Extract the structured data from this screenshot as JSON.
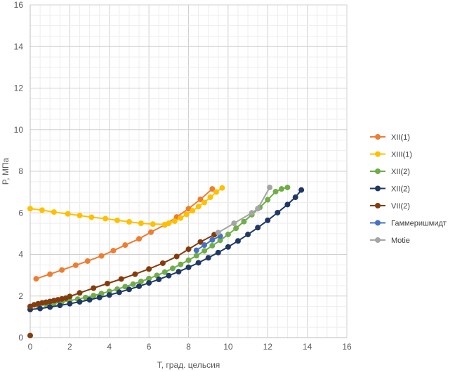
{
  "chart_data": {
    "type": "scatter",
    "title": "",
    "xlabel": "T, град. цельсия",
    "ylabel": "P, МПа",
    "xlim": [
      0,
      16
    ],
    "ylim": [
      0,
      16
    ],
    "xticks": [
      0,
      2,
      4,
      6,
      8,
      10,
      12,
      14,
      16
    ],
    "yticks": [
      0,
      2,
      4,
      6,
      8,
      10,
      12,
      14,
      16
    ],
    "grid": true,
    "legend_position": "right",
    "series": [
      {
        "name": "XII(1)",
        "color": "#ED7D31",
        "points": [
          [
            0.3,
            2.83
          ],
          [
            1.0,
            3.05
          ],
          [
            1.6,
            3.25
          ],
          [
            2.3,
            3.48
          ],
          [
            2.9,
            3.68
          ],
          [
            3.6,
            3.93
          ],
          [
            4.2,
            4.18
          ],
          [
            4.8,
            4.45
          ],
          [
            5.5,
            4.75
          ],
          [
            6.1,
            5.07
          ],
          [
            6.8,
            5.42
          ],
          [
            7.4,
            5.8
          ],
          [
            8.0,
            6.2
          ],
          [
            8.6,
            6.65
          ],
          [
            9.2,
            7.15
          ]
        ]
      },
      {
        "name": "XIII(1)",
        "color": "#FFC000",
        "points": [
          [
            0.0,
            6.2
          ],
          [
            0.6,
            6.13
          ],
          [
            1.2,
            6.04
          ],
          [
            1.9,
            5.95
          ],
          [
            2.5,
            5.87
          ],
          [
            3.1,
            5.79
          ],
          [
            3.8,
            5.72
          ],
          [
            4.4,
            5.64
          ],
          [
            5.0,
            5.57
          ],
          [
            5.6,
            5.5
          ],
          [
            6.2,
            5.46
          ],
          [
            6.8,
            5.44
          ],
          [
            7.0,
            5.5
          ],
          [
            7.3,
            5.6
          ],
          [
            7.6,
            5.75
          ],
          [
            7.9,
            5.93
          ],
          [
            8.2,
            6.1
          ],
          [
            8.5,
            6.3
          ],
          [
            8.8,
            6.5
          ],
          [
            9.1,
            6.75
          ],
          [
            9.4,
            7.0
          ],
          [
            9.7,
            7.2
          ]
        ]
      },
      {
        "name": "XII(2)",
        "color": "#70AD47",
        "points": [
          [
            0.0,
            1.48
          ],
          [
            0.4,
            1.54
          ],
          [
            0.8,
            1.6
          ],
          [
            1.2,
            1.66
          ],
          [
            1.6,
            1.72
          ],
          [
            2.0,
            1.78
          ],
          [
            2.4,
            1.85
          ],
          [
            2.8,
            1.93
          ],
          [
            3.2,
            2.02
          ],
          [
            3.6,
            2.12
          ],
          [
            4.0,
            2.22
          ],
          [
            4.4,
            2.33
          ],
          [
            4.8,
            2.45
          ],
          [
            5.2,
            2.57
          ],
          [
            5.6,
            2.7
          ],
          [
            6.0,
            2.84
          ],
          [
            6.4,
            2.99
          ],
          [
            6.8,
            3.15
          ],
          [
            7.2,
            3.33
          ],
          [
            7.6,
            3.52
          ],
          [
            8.0,
            3.72
          ],
          [
            8.4,
            3.94
          ],
          [
            8.8,
            4.17
          ],
          [
            9.2,
            4.42
          ],
          [
            9.6,
            4.68
          ],
          [
            10.0,
            4.96
          ],
          [
            10.4,
            5.26
          ],
          [
            10.8,
            5.58
          ],
          [
            11.2,
            5.91
          ],
          [
            11.6,
            6.26
          ],
          [
            12.0,
            6.63
          ],
          [
            12.4,
            7.02
          ],
          [
            12.7,
            7.15
          ],
          [
            13.0,
            7.22
          ]
        ]
      },
      {
        "name": "XII(2)",
        "color": "#203864",
        "points": [
          [
            0.0,
            1.35
          ],
          [
            0.5,
            1.4
          ],
          [
            1.0,
            1.47
          ],
          [
            1.5,
            1.55
          ],
          [
            2.0,
            1.63
          ],
          [
            2.5,
            1.72
          ],
          [
            3.0,
            1.82
          ],
          [
            3.5,
            1.93
          ],
          [
            4.0,
            2.05
          ],
          [
            4.5,
            2.18
          ],
          [
            5.0,
            2.32
          ],
          [
            5.5,
            2.47
          ],
          [
            6.0,
            2.63
          ],
          [
            6.5,
            2.8
          ],
          [
            7.0,
            2.98
          ],
          [
            7.5,
            3.17
          ],
          [
            8.0,
            3.38
          ],
          [
            8.5,
            3.6
          ],
          [
            9.0,
            3.84
          ],
          [
            9.5,
            4.09
          ],
          [
            10.0,
            4.36
          ],
          [
            10.5,
            4.65
          ],
          [
            11.0,
            4.96
          ],
          [
            11.5,
            5.29
          ],
          [
            12.0,
            5.64
          ],
          [
            12.5,
            6.01
          ],
          [
            13.0,
            6.4
          ],
          [
            13.4,
            6.75
          ],
          [
            13.7,
            7.1
          ]
        ]
      },
      {
        "name": "VII(2)",
        "color": "#843C0C",
        "points": [
          [
            0.0,
            1.5
          ],
          [
            0.2,
            1.58
          ],
          [
            0.4,
            1.63
          ],
          [
            0.6,
            1.67
          ],
          [
            0.8,
            1.7
          ],
          [
            1.0,
            1.74
          ],
          [
            1.2,
            1.78
          ],
          [
            1.4,
            1.82
          ],
          [
            1.6,
            1.86
          ],
          [
            1.8,
            1.9
          ],
          [
            2.0,
            1.98
          ],
          [
            2.5,
            2.15
          ],
          [
            3.2,
            2.38
          ],
          [
            3.9,
            2.6
          ],
          [
            4.6,
            2.82
          ],
          [
            5.3,
            3.05
          ],
          [
            6.0,
            3.3
          ],
          [
            6.7,
            3.58
          ],
          [
            7.4,
            3.9
          ],
          [
            8.0,
            4.25
          ],
          [
            8.6,
            4.6
          ],
          [
            9.3,
            4.95
          ]
        ]
      },
      {
        "name": "Гаммеришмидт",
        "color": "#4472C4",
        "points": [
          [
            8.4,
            4.2
          ],
          [
            8.8,
            4.45
          ],
          [
            9.2,
            4.7
          ],
          [
            9.6,
            4.88
          ]
        ]
      },
      {
        "name": "Motie",
        "color": "#A5A5A5",
        "points": [
          [
            9.5,
            5.05
          ],
          [
            10.3,
            5.5
          ],
          [
            11.2,
            6.0
          ],
          [
            11.5,
            6.2
          ],
          [
            12.1,
            7.22
          ]
        ]
      }
    ],
    "extra_points": [
      {
        "x": 0.0,
        "y": 0.1,
        "color": "#843C0C"
      }
    ]
  }
}
